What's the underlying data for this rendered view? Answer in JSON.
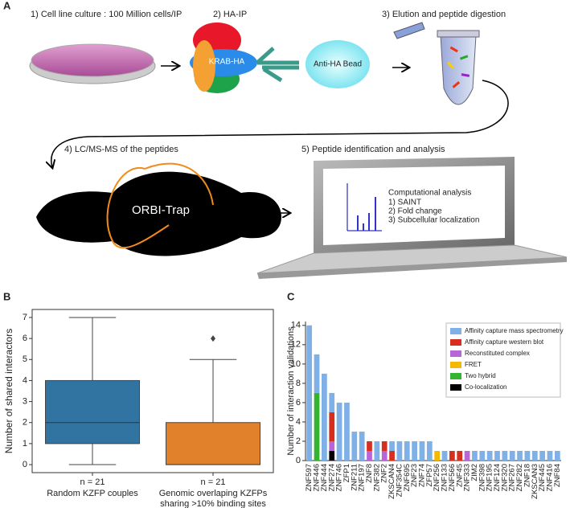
{
  "panel_labels": [
    "A",
    "B",
    "C"
  ],
  "diagram": {
    "steps": [
      "1) Cell line culture : 100 Million cells/IP",
      "2) HA-IP",
      "3) Elution and peptide digestion",
      "4) LC/MS-MS of the peptides",
      "5) Peptide identification and analysis"
    ],
    "protein_label": "KRAB-HA",
    "bead_label": "Anti-HA Bead",
    "instrument_label": "ORBI-Trap",
    "screen_title": "Computational analysis",
    "screen_items": [
      "1) SAINT",
      "2) Fold change",
      "3) Subcellular localization"
    ]
  },
  "chart_data": [
    {
      "type": "box",
      "ylabel": "Number of shared interactors",
      "categories": [
        "Random KZFP couples",
        "Genomic overlaping KZFPs sharing >10% binding sites"
      ],
      "n_labels": [
        "n = 21",
        "n = 21"
      ],
      "boxes": [
        {
          "min": 0,
          "q1": 1,
          "median": 2,
          "q3": 4,
          "max": 7,
          "outliers": [],
          "color": "#3274a1"
        },
        {
          "min": 0,
          "q1": 0,
          "median": 0,
          "q3": 2,
          "max": 5,
          "outliers": [
            6
          ],
          "color": "#e1812c"
        }
      ],
      "ylim": [
        -0.38,
        7.38
      ],
      "yticks": [
        0,
        1,
        2,
        3,
        4,
        5,
        6,
        7
      ]
    },
    {
      "type": "stacked_bar",
      "ylabel": "Number of interaction validations",
      "categories": [
        "ZNF597",
        "ZNF446",
        "ZNF444",
        "ZNF274",
        "ZNF746",
        "ZFP1",
        "ZNF211",
        "ZNF197",
        "ZNF8",
        "ZNF382",
        "ZNF2",
        "ZKSCAN4",
        "ZNF354C",
        "ZNF695",
        "ZNF23",
        "ZNF74",
        "ZFP57",
        "ZNF256",
        "ZNF133",
        "ZNF566",
        "ZNF45",
        "ZNF333",
        "ZIM2",
        "ZNF398",
        "ZNF195",
        "ZNF124",
        "ZNF320",
        "ZNF267",
        "ZNF282",
        "ZNF18",
        "ZKSCAN3",
        "ZNF445",
        "ZNF416",
        "ZNF84"
      ],
      "series": [
        {
          "name": "Affinity capture mass spectrometry",
          "color": "#7fb0e6",
          "values": [
            14,
            4,
            9,
            2,
            6,
            6,
            3,
            3,
            0,
            2,
            0,
            1,
            2,
            2,
            2,
            2,
            2,
            0,
            1,
            0,
            0,
            0,
            1,
            1,
            1,
            1,
            1,
            1,
            1,
            1,
            1,
            1,
            1,
            1
          ]
        },
        {
          "name": "Affinity capture western blot",
          "color": "#d62f1f",
          "values": [
            0,
            0,
            0,
            3,
            0,
            0,
            0,
            0,
            1,
            0,
            1,
            1,
            0,
            0,
            0,
            0,
            0,
            0,
            0,
            1,
            1,
            0,
            0,
            0,
            0,
            0,
            0,
            0,
            0,
            0,
            0,
            0,
            0,
            0
          ]
        },
        {
          "name": "Reconstituted complex",
          "color": "#b866d6",
          "values": [
            0,
            0,
            0,
            1,
            0,
            0,
            0,
            0,
            1,
            0,
            1,
            0,
            0,
            0,
            0,
            0,
            0,
            0,
            0,
            0,
            0,
            1,
            0,
            0,
            0,
            0,
            0,
            0,
            0,
            0,
            0,
            0,
            0,
            0
          ]
        },
        {
          "name": "FRET",
          "color": "#f5b800",
          "values": [
            0,
            0,
            0,
            0,
            0,
            0,
            0,
            0,
            0,
            0,
            0,
            0,
            0,
            0,
            0,
            0,
            0,
            1,
            0,
            0,
            0,
            0,
            0,
            0,
            0,
            0,
            0,
            0,
            0,
            0,
            0,
            0,
            0,
            0
          ]
        },
        {
          "name": "Two hybrid",
          "color": "#35b431",
          "values": [
            0,
            7,
            0,
            0,
            0,
            0,
            0,
            0,
            0,
            0,
            0,
            0,
            0,
            0,
            0,
            0,
            0,
            0,
            0,
            0,
            0,
            0,
            0,
            0,
            0,
            0,
            0,
            0,
            0,
            0,
            0,
            0,
            0,
            0
          ]
        },
        {
          "name": "Co-localization",
          "color": "#000000",
          "values": [
            0,
            0,
            0,
            1,
            0,
            0,
            0,
            0,
            0,
            0,
            0,
            0,
            0,
            0,
            0,
            0,
            0,
            0,
            0,
            0,
            0,
            0,
            0,
            0,
            0,
            0,
            0,
            0,
            0,
            0,
            0,
            0,
            0,
            0
          ]
        }
      ],
      "ylim": [
        0,
        14.4
      ],
      "yticks": [
        0,
        2,
        4,
        6,
        8,
        10,
        12,
        14
      ],
      "legend": "upper right"
    }
  ]
}
